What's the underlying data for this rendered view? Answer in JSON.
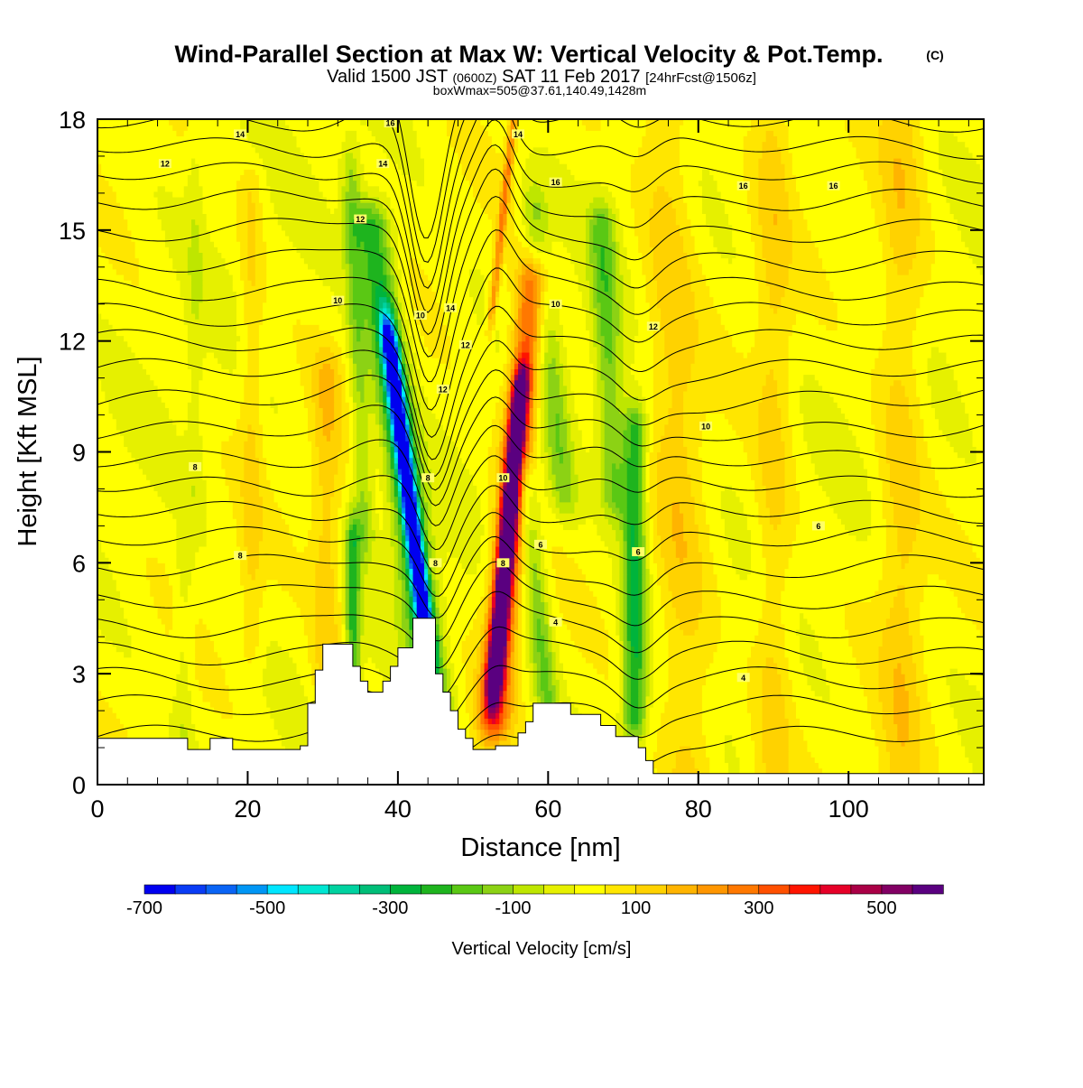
{
  "chart_data": {
    "type": "heatmap",
    "title": "Wind-Parallel Section at Max W: Vertical Velocity & Pot.Temp.",
    "title_mark": "(C)",
    "subtitle": {
      "valid": "Valid 1500 JST",
      "utc": "(0600Z)",
      "date": "SAT 11 Feb 2017",
      "forecast": "[24hrFcst@1506z]"
    },
    "info_line": "boxWmax=505@37.61,140.49,1428m",
    "xlabel": "Distance [nm]",
    "ylabel": "Height [Kft MSL]",
    "xlim": [
      0,
      118
    ],
    "ylim": [
      0,
      18
    ],
    "x_ticks": [
      "0",
      "20",
      "40",
      "60",
      "80",
      "100"
    ],
    "y_ticks": [
      "0",
      "3",
      "6",
      "9",
      "12",
      "15",
      "18"
    ],
    "colorbar": {
      "label": "Vertical Velocity [cm/s]",
      "min": -700,
      "max": 600,
      "step": 50,
      "tick_labels": [
        "-700",
        "-500",
        "-300",
        "-100",
        "100",
        "300",
        "500"
      ],
      "colors": [
        "#0000f0",
        "#0a3cf5",
        "#0a64f5",
        "#0096f5",
        "#00e6ff",
        "#00e6d2",
        "#00d2a0",
        "#00be78",
        "#00b43c",
        "#1eb41e",
        "#5ac814",
        "#8cd214",
        "#bee600",
        "#e6f000",
        "#ffff00",
        "#ffe600",
        "#ffd200",
        "#ffb400",
        "#ff9600",
        "#ff7800",
        "#ff5000",
        "#ff1400",
        "#e60028",
        "#aa0046",
        "#820064",
        "#5a0080"
      ]
    },
    "terrain_kft": [
      [
        0,
        1.25
      ],
      [
        12,
        1.25
      ],
      [
        12,
        0.95
      ],
      [
        15,
        0.95
      ],
      [
        15,
        1.25
      ],
      [
        18,
        1.25
      ],
      [
        18,
        0.95
      ],
      [
        27,
        0.95
      ],
      [
        27,
        1.05
      ],
      [
        28,
        1.05
      ],
      [
        28,
        2.2
      ],
      [
        29,
        2.2
      ],
      [
        29,
        3.1
      ],
      [
        30,
        3.1
      ],
      [
        30,
        3.8
      ],
      [
        34,
        3.8
      ],
      [
        34,
        3.2
      ],
      [
        35,
        3.2
      ],
      [
        35,
        2.8
      ],
      [
        36,
        2.8
      ],
      [
        36,
        2.5
      ],
      [
        38,
        2.5
      ],
      [
        38,
        2.8
      ],
      [
        39,
        2.8
      ],
      [
        39,
        3.2
      ],
      [
        40,
        3.2
      ],
      [
        40,
        3.7
      ],
      [
        42,
        3.7
      ],
      [
        42,
        4.5
      ],
      [
        45,
        4.5
      ],
      [
        45,
        3.0
      ],
      [
        46,
        3.0
      ],
      [
        46,
        2.5
      ],
      [
        47,
        2.5
      ],
      [
        47,
        2.0
      ],
      [
        48,
        2.0
      ],
      [
        48,
        1.5
      ],
      [
        49,
        1.5
      ],
      [
        49,
        1.25
      ],
      [
        50,
        1.25
      ],
      [
        50,
        0.95
      ],
      [
        53,
        0.95
      ],
      [
        53,
        1.05
      ],
      [
        56,
        1.05
      ],
      [
        56,
        1.4
      ],
      [
        57,
        1.4
      ],
      [
        57,
        1.7
      ],
      [
        58,
        1.7
      ],
      [
        58,
        2.2
      ],
      [
        63,
        2.2
      ],
      [
        63,
        1.9
      ],
      [
        67,
        1.9
      ],
      [
        67,
        1.6
      ],
      [
        69,
        1.6
      ],
      [
        69,
        1.3
      ],
      [
        72,
        1.3
      ],
      [
        72,
        1.0
      ],
      [
        73,
        1.0
      ],
      [
        73,
        0.65
      ],
      [
        74,
        0.65
      ],
      [
        74,
        0.3
      ],
      [
        118,
        0.3
      ]
    ],
    "theta_contour_labels": [
      {
        "text": "14",
        "x": 19,
        "y": 17.6
      },
      {
        "text": "12",
        "x": 9,
        "y": 16.8
      },
      {
        "text": "16",
        "x": 39,
        "y": 17.9
      },
      {
        "text": "14",
        "x": 38,
        "y": 16.8
      },
      {
        "text": "12",
        "x": 35,
        "y": 15.3
      },
      {
        "text": "14",
        "x": 56,
        "y": 17.6
      },
      {
        "text": "16",
        "x": 61,
        "y": 16.3
      },
      {
        "text": "16",
        "x": 86,
        "y": 16.2
      },
      {
        "text": "16",
        "x": 98,
        "y": 16.2
      },
      {
        "text": "10",
        "x": 32,
        "y": 13.1
      },
      {
        "text": "10",
        "x": 43,
        "y": 12.7
      },
      {
        "text": "14",
        "x": 47,
        "y": 12.9
      },
      {
        "text": "10",
        "x": 61,
        "y": 13.0
      },
      {
        "text": "12",
        "x": 74,
        "y": 12.4
      },
      {
        "text": "12",
        "x": 49,
        "y": 11.9
      },
      {
        "text": "12",
        "x": 46,
        "y": 10.7
      },
      {
        "text": "10",
        "x": 81,
        "y": 9.7
      },
      {
        "text": "8",
        "x": 13,
        "y": 8.6
      },
      {
        "text": "8",
        "x": 44,
        "y": 8.3
      },
      {
        "text": "10",
        "x": 54,
        "y": 8.3
      },
      {
        "text": "8",
        "x": 19,
        "y": 6.2
      },
      {
        "text": "8",
        "x": 45,
        "y": 6.0
      },
      {
        "text": "8",
        "x": 54,
        "y": 6.0
      },
      {
        "text": "6",
        "x": 59,
        "y": 6.5
      },
      {
        "text": "6",
        "x": 72,
        "y": 6.3
      },
      {
        "text": "6",
        "x": 96,
        "y": 7.0
      },
      {
        "text": "4",
        "x": 61,
        "y": 4.4
      },
      {
        "text": "4",
        "x": 86,
        "y": 2.9
      }
    ]
  }
}
